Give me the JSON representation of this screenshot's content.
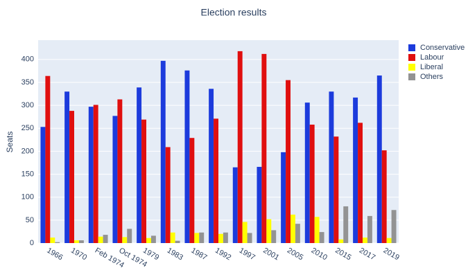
{
  "chart_data": {
    "type": "bar",
    "title": "Election results",
    "y_label": "Seats",
    "categories": [
      "1966",
      "1970",
      "Feb 1974",
      "Oct 1974",
      "1979",
      "1983",
      "1987",
      "1992",
      "1997",
      "2001",
      "2005",
      "2010",
      "2015",
      "2017",
      "2019"
    ],
    "series": [
      {
        "name": "Conservative",
        "color": "#1c3bdc",
        "values": [
          253,
          330,
          297,
          277,
          339,
          397,
          376,
          336,
          165,
          166,
          198,
          306,
          330,
          317,
          365
        ]
      },
      {
        "name": "Labour",
        "color": "#e00f0f",
        "values": [
          364,
          288,
          301,
          313,
          269,
          209,
          229,
          271,
          418,
          412,
          355,
          258,
          232,
          262,
          202
        ]
      },
      {
        "name": "Liberal",
        "color": "#ffff00",
        "values": [
          12,
          6,
          14,
          13,
          11,
          23,
          22,
          20,
          46,
          52,
          62,
          57,
          8,
          12,
          11
        ]
      },
      {
        "name": "Others",
        "color": "#939393",
        "values": [
          2,
          6,
          18,
          31,
          16,
          5,
          23,
          23,
          22,
          28,
          42,
          24,
          80,
          59,
          72
        ]
      }
    ],
    "ylim": [
      0,
      442
    ],
    "yticks": [
      0,
      50,
      100,
      150,
      200,
      250,
      300,
      350,
      400
    ],
    "grid": true,
    "legend": "right"
  }
}
